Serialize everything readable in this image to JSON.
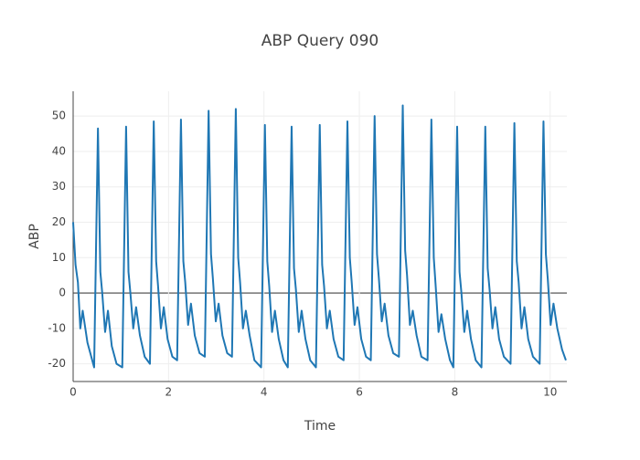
{
  "chart_data": {
    "type": "line",
    "title": "ABP Query 090",
    "x_label": "Time",
    "y_label": "ABP",
    "xlim": [
      0,
      10.35
    ],
    "xticks": [
      0,
      2,
      4,
      6,
      8,
      10
    ],
    "ylim": [
      -25,
      57
    ],
    "yticks": [
      -20,
      -10,
      0,
      10,
      20,
      30,
      40,
      50
    ],
    "grid": true,
    "x": [
      0,
      0.05,
      0.1,
      0.15,
      0.2,
      0.3,
      0.44,
      0.52,
      0.57,
      0.61,
      0.67,
      0.73,
      0.81,
      0.91,
      1.03,
      1.11,
      1.16,
      1.2,
      1.26,
      1.32,
      1.4,
      1.5,
      1.61,
      1.69,
      1.74,
      1.78,
      1.84,
      1.9,
      1.98,
      2.08,
      2.18,
      2.26,
      2.31,
      2.35,
      2.41,
      2.47,
      2.55,
      2.65,
      2.76,
      2.84,
      2.89,
      2.93,
      2.99,
      3.05,
      3.13,
      3.23,
      3.33,
      3.41,
      3.46,
      3.5,
      3.56,
      3.62,
      3.7,
      3.8,
      3.94,
      4.02,
      4.07,
      4.11,
      4.17,
      4.23,
      4.31,
      4.41,
      4.5,
      4.58,
      4.63,
      4.67,
      4.73,
      4.79,
      4.87,
      4.97,
      5.09,
      5.17,
      5.22,
      5.26,
      5.32,
      5.38,
      5.46,
      5.56,
      5.67,
      5.75,
      5.8,
      5.84,
      5.9,
      5.96,
      6.04,
      6.14,
      6.24,
      6.32,
      6.37,
      6.41,
      6.47,
      6.53,
      6.61,
      6.71,
      6.83,
      6.91,
      6.96,
      7.0,
      7.06,
      7.12,
      7.2,
      7.3,
      7.43,
      7.51,
      7.56,
      7.6,
      7.66,
      7.72,
      7.8,
      7.9,
      7.97,
      8.05,
      8.1,
      8.14,
      8.2,
      8.26,
      8.34,
      8.44,
      8.56,
      8.64,
      8.69,
      8.73,
      8.79,
      8.85,
      8.93,
      9.03,
      9.17,
      9.25,
      9.3,
      9.34,
      9.4,
      9.46,
      9.54,
      9.64,
      9.78,
      9.86,
      9.91,
      9.95,
      10.01,
      10.07,
      10.15,
      10.25,
      10.33
    ],
    "series": [
      {
        "name": "ABP",
        "color": "#1f77b4",
        "values": [
          20,
          8,
          3,
          -10,
          -5,
          -14,
          -21,
          46.5,
          6,
          0,
          -11,
          -5,
          -15,
          -20,
          -21,
          47,
          6,
          0,
          -10,
          -4,
          -12,
          -18,
          -20,
          48.5,
          9,
          2,
          -10,
          -4,
          -13,
          -18,
          -19,
          49,
          9,
          3,
          -9,
          -3,
          -12,
          -17,
          -18,
          51.5,
          11,
          4,
          -8,
          -3,
          -12,
          -17,
          -18,
          52,
          10,
          3,
          -10,
          -5,
          -12,
          -19,
          -21,
          47.5,
          9,
          2,
          -11,
          -5,
          -13,
          -19,
          -21,
          47,
          7,
          1,
          -11,
          -5,
          -13,
          -19,
          -21,
          47.5,
          8,
          2,
          -10,
          -5,
          -13,
          -18,
          -19,
          48.5,
          10,
          3,
          -9,
          -4,
          -13,
          -18,
          -19,
          50,
          11,
          4,
          -8,
          -3,
          -12,
          -17,
          -18,
          53,
          12,
          5,
          -9,
          -5,
          -12,
          -18,
          -19,
          49,
          10,
          2,
          -11,
          -6,
          -13,
          -19,
          -21,
          47,
          6,
          0,
          -11,
          -5,
          -13,
          -19,
          -21,
          47,
          7,
          1,
          -10,
          -4,
          -13,
          -18,
          -20,
          48,
          9,
          3,
          -10,
          -4,
          -13,
          -18,
          -20,
          48.5,
          11,
          4,
          -9,
          -3,
          -10,
          -16,
          -19
        ]
      }
    ]
  }
}
